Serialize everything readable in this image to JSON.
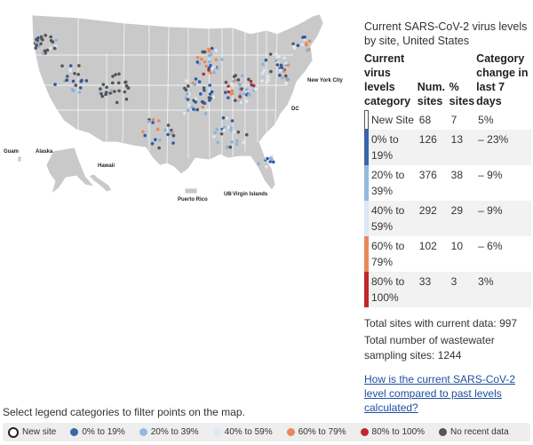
{
  "map": {
    "labels": {
      "guam": "Guam",
      "alaska": "Alaska",
      "hawaii": "Hawaii",
      "puerto_rico": "Puerto Rico",
      "usvi": "US Virgin Islands",
      "nyc": "New York City",
      "dc": "DC"
    },
    "colors": {
      "land": "#c9c9c9",
      "border": "#ffffff",
      "new": "#ffffff",
      "c0_19": "#2e5ba6",
      "c20_39": "#8fb3da",
      "c40_59": "#dbe8f5",
      "c60_79": "#e9895a",
      "c80_100": "#c0282c",
      "no_recent": "#555555"
    }
  },
  "panel": {
    "title": "Current SARS-CoV-2 virus levels by site, United States",
    "headers": {
      "category": "Current virus levels category",
      "num": "Num. sites",
      "pct": "% sites",
      "change": "Category change in last 7 days"
    },
    "rows": [
      {
        "category": "New Site",
        "num": "68",
        "pct": "7",
        "change": "5%",
        "color": "#ffffff"
      },
      {
        "category": "0% to 19%",
        "num": "126",
        "pct": "13",
        "change": "– 23%",
        "color": "#3a65ab"
      },
      {
        "category": "20% to 39%",
        "num": "376",
        "pct": "38",
        "change": "– 9%",
        "color": "#94b9dd"
      },
      {
        "category": "40% to 59%",
        "num": "292",
        "pct": "29",
        "change": "– 9%",
        "color": "#dbe8f5"
      },
      {
        "category": "60% to 79%",
        "num": "102",
        "pct": "10",
        "change": "– 6%",
        "color": "#e9895a"
      },
      {
        "category": "80% to 100%",
        "num": "33",
        "pct": "3",
        "change": "3%",
        "color": "#c0282c"
      }
    ],
    "total_current": "Total sites with current data: 997",
    "total_sampling": "Total number of wastewater sampling sites: 1244",
    "link": "How is the current SARS-CoV-2 level compared to past levels calculated?"
  },
  "legend": {
    "prompt": "Select legend categories to filter points on the map.",
    "items": [
      {
        "label": "New site",
        "color": "#ffffff",
        "hollow": true
      },
      {
        "label": "0% to 19%",
        "color": "#3a65ab"
      },
      {
        "label": "20% to 39%",
        "color": "#94b9dd"
      },
      {
        "label": "40% to 59%",
        "color": "#dbe8f5"
      },
      {
        "label": "60% to 79%",
        "color": "#e9895a"
      },
      {
        "label": "80% to 100%",
        "color": "#c0282c"
      },
      {
        "label": "No recent data",
        "color": "#555555"
      }
    ]
  }
}
